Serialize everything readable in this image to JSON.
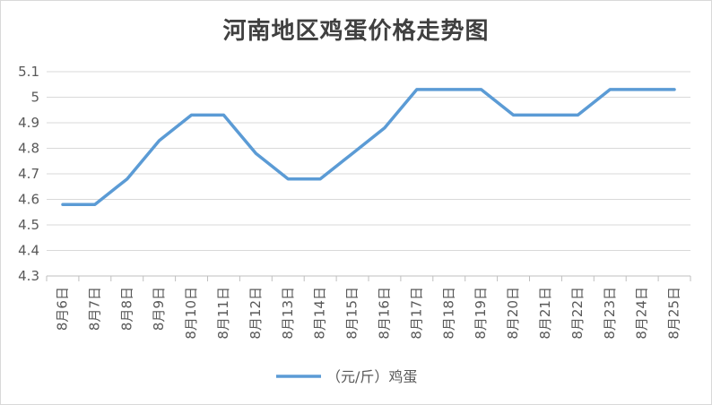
{
  "chart_data": {
    "type": "line",
    "title": "河南地区鸡蛋价格走势图",
    "categories": [
      "8月6日",
      "8月7日",
      "8月8日",
      "8月9日",
      "8月10日",
      "8月11日",
      "8月12日",
      "8月13日",
      "8月14日",
      "8月15日",
      "8月16日",
      "8月17日",
      "8月18日",
      "8月19日",
      "8月20日",
      "8月21日",
      "8月22日",
      "8月23日",
      "8月24日",
      "8月25日"
    ],
    "series": [
      {
        "name": "（元/斤）鸡蛋",
        "color": "#5b9bd5",
        "values": [
          4.58,
          4.58,
          4.68,
          4.83,
          4.93,
          4.93,
          4.78,
          4.68,
          4.68,
          4.78,
          4.88,
          5.03,
          5.03,
          5.03,
          4.93,
          4.93,
          4.93,
          5.03,
          5.03,
          5.03
        ]
      }
    ],
    "ylim": [
      4.3,
      5.1
    ],
    "yticks": [
      "4.3",
      "4.4",
      "4.5",
      "4.6",
      "4.7",
      "4.8",
      "4.9",
      "5",
      "5.1"
    ],
    "grid": true,
    "legend_position": "bottom"
  }
}
